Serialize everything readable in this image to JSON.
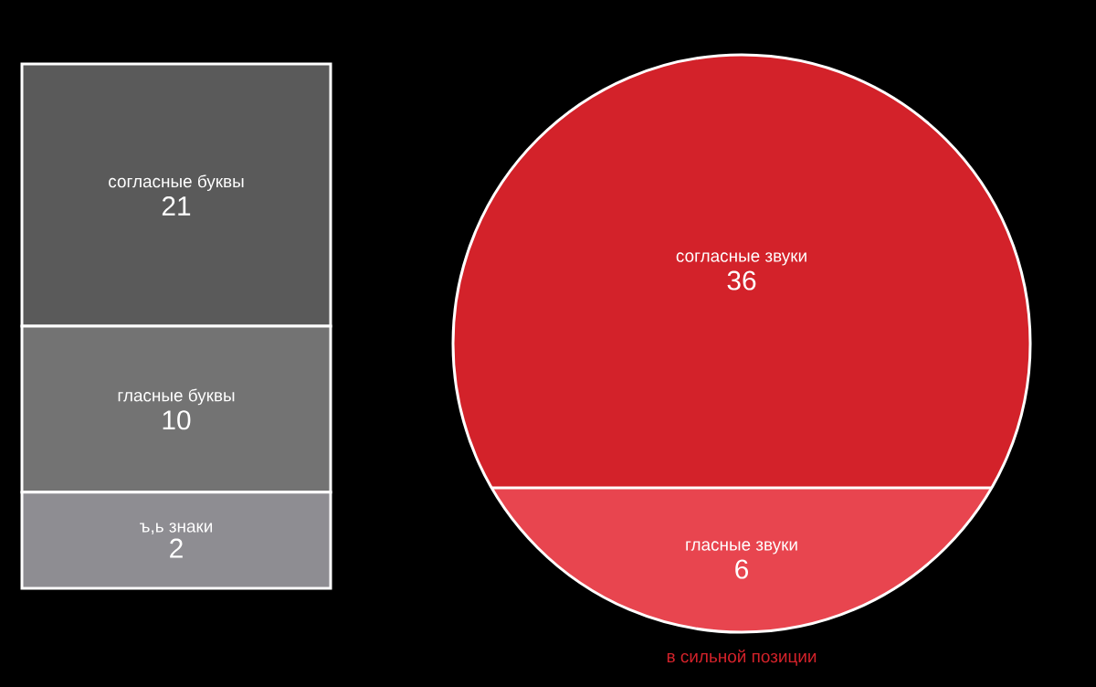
{
  "chart_data": [
    {
      "type": "other",
      "categories": [
        "согласные буквы",
        "гласные буквы",
        "ъ,ь знаки"
      ],
      "values": [
        21,
        10,
        2
      ],
      "colors": [
        "#5a5a5a",
        "#737373",
        "#8e8d92"
      ],
      "data_labels": true
    },
    {
      "type": "other",
      "categories": [
        "согласные звуки",
        "гласные звуки"
      ],
      "values": [
        36,
        6
      ],
      "colors": [
        "#d3222a",
        "#e8454f"
      ],
      "data_labels": true,
      "annotations": [
        "в сильной позиции"
      ]
    }
  ]
}
